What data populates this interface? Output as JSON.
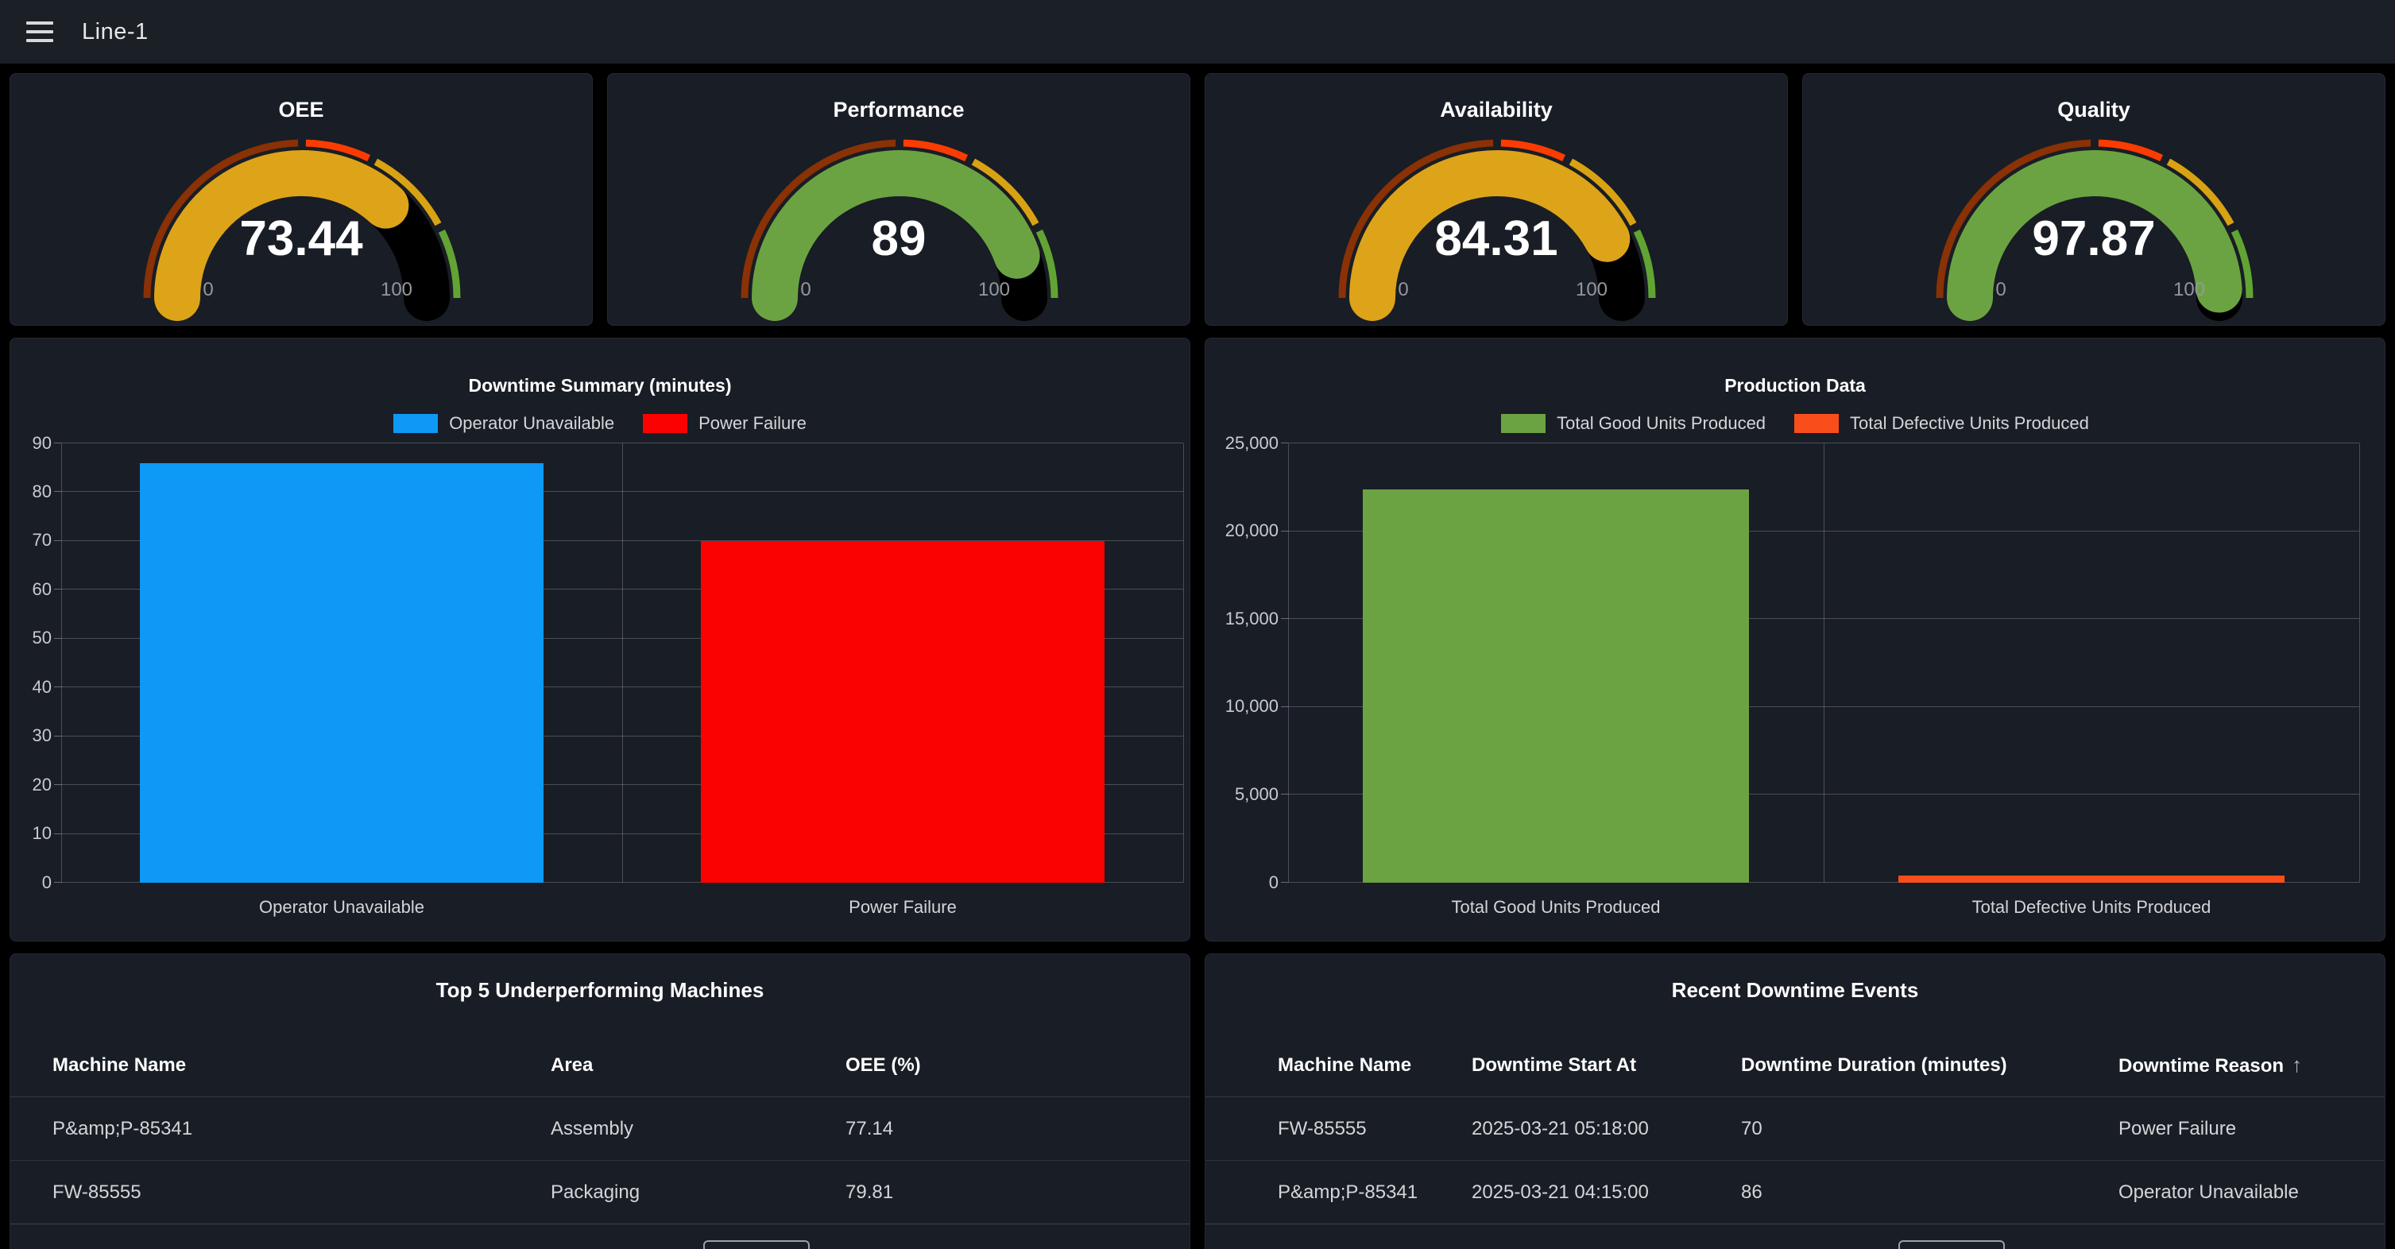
{
  "topbar": {
    "title": "Line-1"
  },
  "gauges": [
    {
      "title": "OEE",
      "value": "73.44",
      "pct": 73.44,
      "fill": "#dda41a"
    },
    {
      "title": "Performance",
      "value": "89",
      "pct": 89,
      "fill": "#6ca342"
    },
    {
      "title": "Availability",
      "value": "84.31",
      "pct": 84.31,
      "fill": "#dda41a"
    },
    {
      "title": "Quality",
      "value": "97.87",
      "pct": 97.87,
      "fill": "#6ca342"
    }
  ],
  "gauge_scale": {
    "min": "0",
    "max": "100",
    "bands": [
      {
        "to": 50,
        "color": "#8a3105"
      },
      {
        "to": 65,
        "color": "#fb3c02"
      },
      {
        "to": 85,
        "color": "#d8a213"
      },
      {
        "to": 100,
        "color": "#61a433"
      }
    ]
  },
  "chart_data": [
    {
      "type": "bar",
      "title": "Downtime Summary (minutes)",
      "categories": [
        "Operator Unavailable",
        "Power Failure"
      ],
      "values": [
        86,
        70
      ],
      "colors": [
        "#0d99f5",
        "#fb0202"
      ],
      "legend": [
        "Operator Unavailable",
        "Power Failure"
      ],
      "legend_position": "top",
      "grid": true,
      "xlabel": "",
      "ylabel": "",
      "ylim": [
        0,
        90
      ],
      "yticks": [
        {
          "v": 0,
          "label": "0"
        },
        {
          "v": 10,
          "label": "10"
        },
        {
          "v": 20,
          "label": "20"
        },
        {
          "v": 30,
          "label": "30"
        },
        {
          "v": 40,
          "label": "40"
        },
        {
          "v": 50,
          "label": "50"
        },
        {
          "v": 60,
          "label": "60"
        },
        {
          "v": 70,
          "label": "70"
        },
        {
          "v": 80,
          "label": "80"
        },
        {
          "v": 90,
          "label": "90"
        }
      ]
    },
    {
      "type": "bar",
      "title": "Production Data",
      "categories": [
        "Total Good Units Produced",
        "Total Defective Units Produced"
      ],
      "values": [
        22400,
        400
      ],
      "colors": [
        "#6ca342",
        "#f94e1b"
      ],
      "legend": [
        "Total Good Units Produced",
        "Total Defective Units Produced"
      ],
      "legend_position": "top",
      "grid": true,
      "xlabel": "",
      "ylabel": "",
      "ylim": [
        0,
        25000
      ],
      "yticks": [
        {
          "v": 0,
          "label": "0"
        },
        {
          "v": 5000,
          "label": "5,000"
        },
        {
          "v": 10000,
          "label": "10,000"
        },
        {
          "v": 15000,
          "label": "15,000"
        },
        {
          "v": 20000,
          "label": "20,000"
        },
        {
          "v": 25000,
          "label": "25,000"
        }
      ]
    }
  ],
  "tables": [
    {
      "title": "Top 5 Underperforming Machines",
      "columns": [
        "Machine Name",
        "Area",
        "OEE (%)"
      ],
      "rows": [
        [
          "P&amp;P-85341",
          "Assembly",
          "77.14"
        ],
        [
          "FW-85555",
          "Packaging",
          "79.81"
        ]
      ]
    },
    {
      "title": "Recent Downtime Events",
      "columns": [
        "Machine Name",
        "Downtime Start At",
        "Downtime Duration (minutes)",
        "Downtime Reason"
      ],
      "sort_column": "Downtime Reason",
      "sort_icon": "↑",
      "rows": [
        [
          "FW-85555",
          "2025-03-21 05:18:00",
          "70",
          "Power Failure"
        ],
        [
          "P&amp;P-85341",
          "2025-03-21 04:15:00",
          "86",
          "Operator Unavailable"
        ]
      ]
    }
  ]
}
